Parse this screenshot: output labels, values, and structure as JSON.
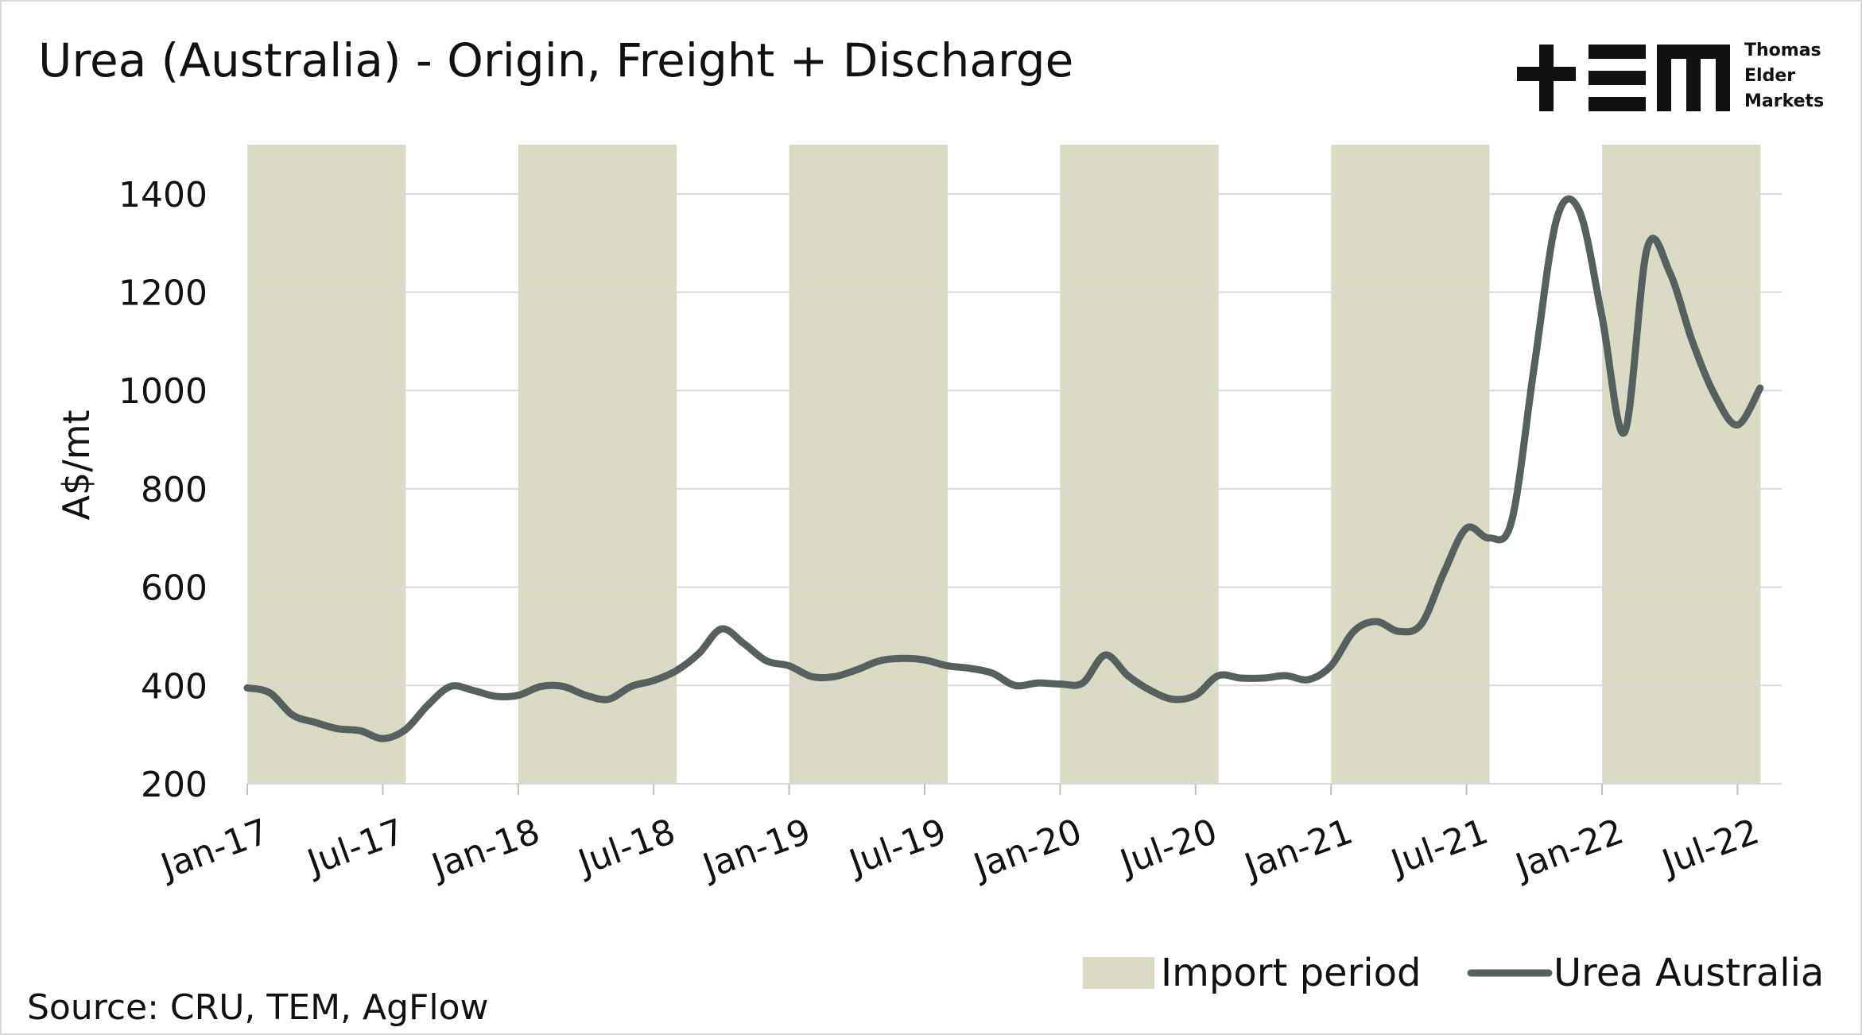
{
  "chart_data": {
    "type": "line",
    "title": "Urea (Australia) - Origin, Freight + Discharge",
    "y_label": "A$/mt",
    "source": "Source: CRU, TEM, AgFlow",
    "logo": [
      "Thomas",
      "Elder",
      "Markets"
    ],
    "categories": [
      "Jan-17",
      null,
      null,
      null,
      null,
      null,
      "Jul-17",
      null,
      null,
      null,
      null,
      null,
      "Jan-18",
      null,
      null,
      null,
      null,
      null,
      "Jul-18",
      null,
      null,
      null,
      null,
      null,
      "Jan-19",
      null,
      null,
      null,
      null,
      null,
      "Jul-19",
      null,
      null,
      null,
      null,
      null,
      "Jan-20",
      null,
      null,
      null,
      null,
      null,
      "Jul-20",
      null,
      null,
      null,
      null,
      null,
      "Jan-21",
      null,
      null,
      null,
      null,
      null,
      "Jul-21",
      null,
      null,
      null,
      null,
      null,
      "Jan-22",
      null,
      null,
      null,
      null,
      null,
      "Jul-22",
      null
    ],
    "series": [
      {
        "name": "Import period",
        "type": "bar",
        "color": "#dbdbc5",
        "values": [
          1500,
          1500,
          1500,
          1500,
          1500,
          1500,
          1500,
          null,
          null,
          null,
          null,
          null,
          1500,
          1500,
          1500,
          1500,
          1500,
          1500,
          1500,
          null,
          null,
          null,
          null,
          null,
          1500,
          1500,
          1500,
          1500,
          1500,
          1500,
          1500,
          null,
          null,
          null,
          null,
          null,
          1500,
          1500,
          1500,
          1500,
          1500,
          1500,
          1500,
          null,
          null,
          null,
          null,
          null,
          1500,
          1500,
          1500,
          1500,
          1500,
          1500,
          1500,
          null,
          null,
          null,
          null,
          null,
          1500,
          1500,
          1500,
          1500,
          1500,
          1500,
          1500,
          null
        ]
      },
      {
        "name": "Urea Australia",
        "type": "line",
        "color": "#56615f",
        "values": [
          395,
          385,
          340,
          325,
          312,
          308,
          292,
          310,
          360,
          398,
          390,
          378,
          380,
          398,
          398,
          380,
          372,
          398,
          410,
          430,
          465,
          515,
          485,
          450,
          440,
          418,
          418,
          432,
          450,
          455,
          452,
          440,
          435,
          425,
          400,
          405,
          403,
          405,
          462,
          420,
          390,
          372,
          380,
          420,
          415,
          415,
          420,
          412,
          440,
          510,
          530,
          510,
          525,
          630,
          720,
          700,
          735,
          1050,
          1350,
          1365,
          1150,
          915,
          1290,
          1240,
          1100,
          990,
          930,
          1005
        ]
      }
    ],
    "ylim": [
      200,
      1500
    ],
    "yticks": [
      200,
      400,
      600,
      800,
      1000,
      1200,
      1400
    ],
    "grid": true
  }
}
